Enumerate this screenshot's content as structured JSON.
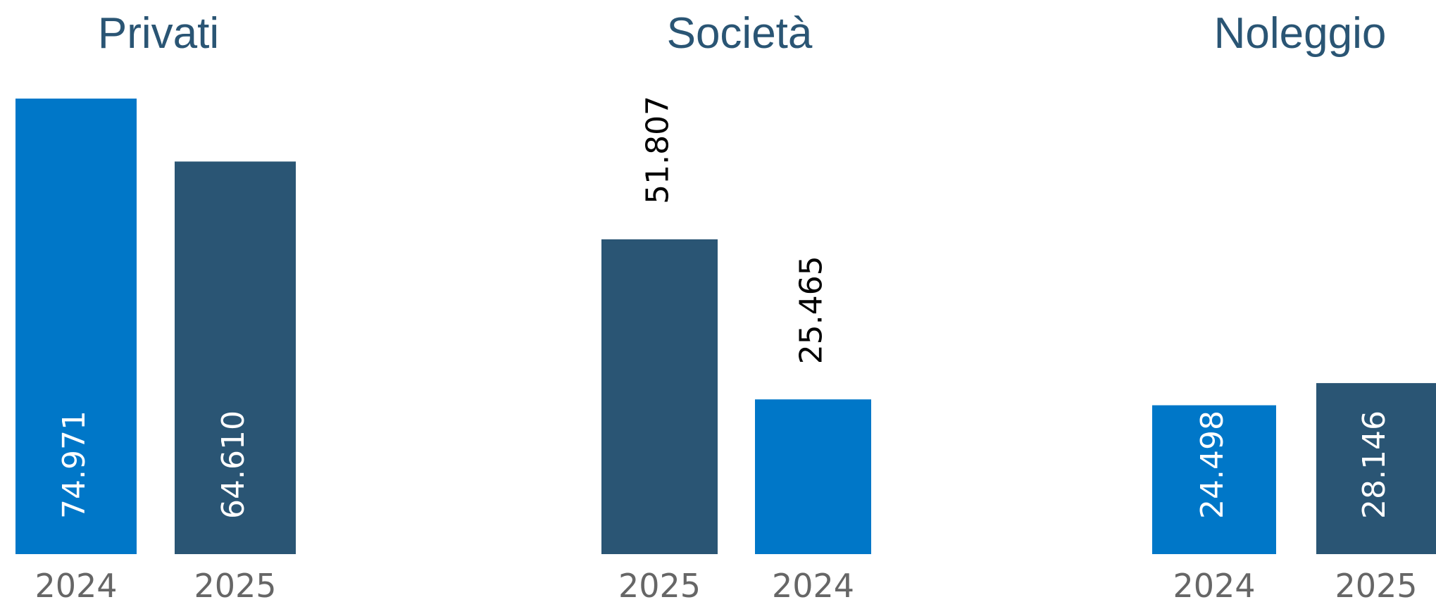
{
  "chart_data": [
    {
      "type": "bar",
      "title": "Privati",
      "categories": [
        "2024",
        "2025"
      ],
      "values": [
        74971,
        64610
      ],
      "value_labels": [
        "74.971",
        "64.610"
      ],
      "colors": [
        "#0077c8",
        "#2a5574"
      ],
      "label_position": "inside"
    },
    {
      "type": "bar",
      "title": "Società",
      "categories": [
        "2025",
        "2024"
      ],
      "values": [
        51807,
        25465
      ],
      "value_labels": [
        "51.807",
        "25.465"
      ],
      "colors": [
        "#2a5574",
        "#0077c8"
      ],
      "label_position": "outside"
    },
    {
      "type": "bar",
      "title": "Noleggio",
      "categories": [
        "2024",
        "2025"
      ],
      "values": [
        24498,
        28146
      ],
      "value_labels": [
        "24.498",
        "28.146"
      ],
      "colors": [
        "#0077c8",
        "#2a5574"
      ],
      "label_position": "inside"
    }
  ],
  "colors": {
    "bar_2024": "#0077c8",
    "bar_2025": "#2a5574",
    "title": "#2a5574",
    "category_label": "#666666"
  }
}
